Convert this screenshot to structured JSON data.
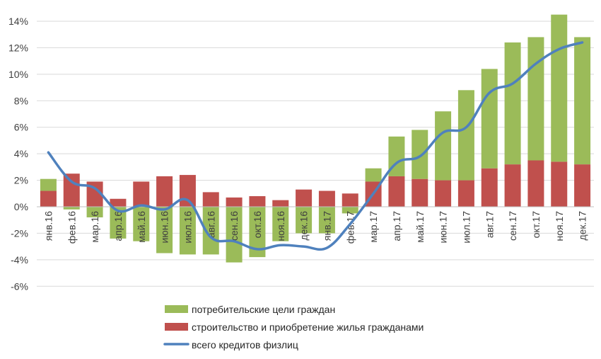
{
  "chart_data": {
    "type": "bar",
    "stacked": true,
    "categories": [
      "янв.16",
      "фев.16",
      "мар.16",
      "апр.16",
      "май.16",
      "июн.16",
      "июл.16",
      "авг.16",
      "сен.16",
      "окт.16",
      "ноя.16",
      "дек.16",
      "янв.17",
      "фев.17",
      "мар.17",
      "апр.17",
      "май.17",
      "июн.17",
      "июл.17",
      "авг.17",
      "сен.17",
      "окт.17",
      "ноя.17",
      "дек.17"
    ],
    "series": [
      {
        "name": "потребительские цели граждан",
        "type": "bar",
        "color": "#9BBB59",
        "values": [
          0.9,
          -0.2,
          -0.8,
          -2.4,
          -2.6,
          -3.5,
          -3.6,
          -3.6,
          -4.2,
          -3.8,
          -2.6,
          -2.0,
          -2.0,
          -0.5,
          1.0,
          3.0,
          3.7,
          5.2,
          6.8,
          7.5,
          9.2,
          9.3,
          11.1,
          9.6
        ]
      },
      {
        "name": "строительство и приобретение жилья гражданами",
        "type": "bar",
        "color": "#C0504D",
        "values": [
          1.2,
          2.5,
          1.9,
          0.6,
          1.9,
          2.3,
          2.4,
          1.1,
          0.7,
          0.8,
          0.5,
          1.3,
          1.2,
          1.0,
          1.9,
          2.3,
          2.1,
          2.0,
          2.0,
          2.9,
          3.2,
          3.5,
          3.4,
          3.2
        ]
      },
      {
        "name": "всего кредитов физлиц",
        "type": "line",
        "color": "#4F81BD",
        "values": [
          4.1,
          1.9,
          1.4,
          -0.3,
          0.1,
          -0.2,
          0.5,
          -2.3,
          -2.6,
          -3.2,
          -2.9,
          -3.0,
          -3.1,
          -1.3,
          1.0,
          3.3,
          3.8,
          5.6,
          6.0,
          8.6,
          9.3,
          10.8,
          11.9,
          12.4
        ]
      }
    ],
    "ylim": [
      -6,
      14
    ],
    "yticks": [
      "-6%",
      "-4%",
      "-2%",
      "0%",
      "2%",
      "4%",
      "6%",
      "8%",
      "10%",
      "12%",
      "14%"
    ],
    "grid": true,
    "legend": "bottom"
  }
}
